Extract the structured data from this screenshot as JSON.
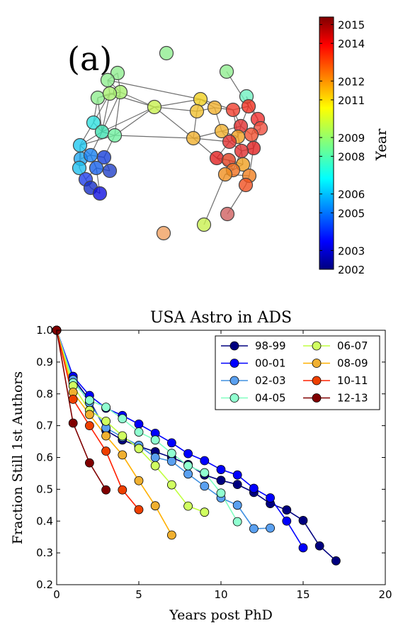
{
  "chart_data": [
    {
      "type": "network",
      "panel_label": "(a)",
      "colorbar": {
        "label": "Year",
        "ticks": [
          "2002",
          "2003",
          "2005",
          "2006",
          "2008",
          "2009",
          "2011",
          "2012",
          "2014",
          "2015"
        ],
        "range": [
          2002,
          2015.4
        ]
      }
    },
    {
      "type": "line",
      "title": "USA Astro in ADS",
      "xlabel": "Years post PhD",
      "ylabel": "Fraction Still 1st Authors",
      "xlim": [
        0,
        20
      ],
      "ylim": [
        0.2,
        1.0
      ],
      "xticks": [
        "0",
        "5",
        "10",
        "15",
        "20"
      ],
      "yticks": [
        "0.2",
        "0.3",
        "0.4",
        "0.5",
        "0.6",
        "0.7",
        "0.8",
        "0.9",
        "1.0"
      ],
      "legend_position": "top-right",
      "series": [
        {
          "name": "98-99",
          "line_color": "#000080",
          "marker_color": "#00007f",
          "x": [
            0,
            1,
            2,
            3,
            4,
            5,
            6,
            7,
            8,
            9,
            10,
            11,
            12,
            13,
            14,
            15,
            16,
            17
          ],
          "y": [
            1.0,
            0.85,
            0.78,
            0.685,
            0.655,
            0.635,
            0.618,
            0.6,
            0.578,
            0.545,
            0.528,
            0.515,
            0.49,
            0.455,
            0.435,
            0.402,
            0.322,
            0.275
          ]
        },
        {
          "name": "00-01",
          "line_color": "#0000ff",
          "marker_color": "#0000ff",
          "x": [
            0,
            1,
            2,
            3,
            4,
            5,
            6,
            7,
            8,
            9,
            10,
            11,
            12,
            13,
            14,
            15
          ],
          "y": [
            1.0,
            0.855,
            0.795,
            0.755,
            0.732,
            0.705,
            0.676,
            0.646,
            0.612,
            0.59,
            0.562,
            0.545,
            0.503,
            0.473,
            0.4,
            0.316
          ]
        },
        {
          "name": "02-03",
          "line_color": "#4090e0",
          "marker_color": "#5aa0f0",
          "x": [
            0,
            1,
            2,
            3,
            4,
            5,
            6,
            7,
            8,
            9,
            10,
            11,
            12,
            13
          ],
          "y": [
            1.0,
            0.845,
            0.772,
            0.693,
            0.664,
            0.638,
            0.6,
            0.588,
            0.548,
            0.51,
            0.473,
            0.45,
            0.376,
            0.378
          ]
        },
        {
          "name": "04-05",
          "line_color": "#80ffc0",
          "marker_color": "#90ffd0",
          "x": [
            0,
            1,
            2,
            3,
            4,
            5,
            6,
            7,
            8,
            9,
            10,
            11
          ],
          "y": [
            1.0,
            0.835,
            0.78,
            0.758,
            0.722,
            0.68,
            0.655,
            0.613,
            0.574,
            0.552,
            0.488,
            0.398
          ]
        },
        {
          "name": "06-07",
          "line_color": "#c0ff40",
          "marker_color": "#d0ff60",
          "x": [
            0,
            1,
            2,
            3,
            4,
            5,
            6,
            7,
            8,
            9
          ],
          "y": [
            1.0,
            0.825,
            0.748,
            0.714,
            0.668,
            0.628,
            0.574,
            0.514,
            0.447,
            0.428
          ]
        },
        {
          "name": "08-09",
          "line_color": "#ffb000",
          "marker_color": "#f0b030",
          "x": [
            0,
            1,
            2,
            3,
            4,
            5,
            6,
            7
          ],
          "y": [
            1.0,
            0.805,
            0.735,
            0.668,
            0.608,
            0.527,
            0.448,
            0.356
          ]
        },
        {
          "name": "10-11",
          "line_color": "#ff2000",
          "marker_color": "#ee4000",
          "x": [
            0,
            1,
            2,
            3,
            4,
            5
          ],
          "y": [
            1.0,
            0.783,
            0.7,
            0.62,
            0.498,
            0.436
          ]
        },
        {
          "name": "12-13",
          "line_color": "#800000",
          "marker_color": "#800000",
          "x": [
            0,
            1,
            2,
            3
          ],
          "y": [
            1.0,
            0.708,
            0.583,
            0.498
          ]
        }
      ]
    }
  ]
}
